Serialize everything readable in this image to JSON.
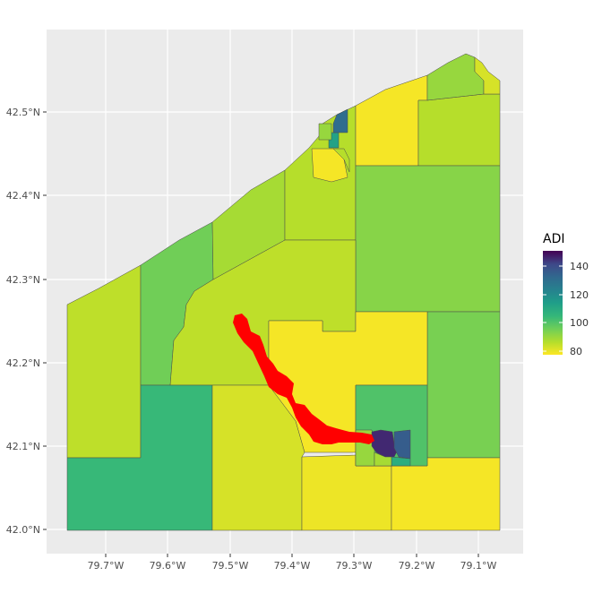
{
  "map": {
    "background_color": "#EBEBEB",
    "grid_color": "#FFFFFF",
    "highlight_color": "#FF0000",
    "x_ticks": [
      "79.7°W",
      "79.6°W",
      "79.5°W",
      "79.4°W",
      "79.3°W",
      "79.2°W",
      "79.1°W"
    ],
    "y_ticks": [
      "42.5°N",
      "42.4°N",
      "42.3°N",
      "42.2°N",
      "42.1°N",
      "42.0°N"
    ]
  },
  "legend": {
    "title": "ADI",
    "labels": [
      "140",
      "120",
      "100",
      "80"
    ],
    "min": 77,
    "max": 150
  },
  "regions": [
    {
      "id": "northwest-lakeshore",
      "adi": 85
    },
    {
      "id": "west-central",
      "adi": 95
    },
    {
      "id": "north-central-west",
      "adi": 88
    },
    {
      "id": "north-central-east",
      "adi": 86
    },
    {
      "id": "northeast-yellow",
      "adi": 78
    },
    {
      "id": "northeast-green",
      "adi": 86
    },
    {
      "id": "far-northeast-green",
      "adi": 90
    },
    {
      "id": "far-northeast-yellow",
      "adi": 82
    },
    {
      "id": "east-central-large",
      "adi": 92
    },
    {
      "id": "central-large",
      "adi": 85
    },
    {
      "id": "east-middle",
      "adi": 94
    },
    {
      "id": "south-central-yellow",
      "adi": 78
    },
    {
      "id": "southwest-teal",
      "adi": 104
    },
    {
      "id": "south-central-olive",
      "adi": 82
    },
    {
      "id": "south-southwest-yellow",
      "adi": 79
    },
    {
      "id": "south-central-yellow-2",
      "adi": 78
    },
    {
      "id": "southeast-yellow",
      "adi": 78
    },
    {
      "id": "city-teal-block",
      "adi": 100
    },
    {
      "id": "city-green-west",
      "adi": 90
    },
    {
      "id": "city-purple-core",
      "adi": 145
    },
    {
      "id": "city-indigo",
      "adi": 135
    },
    {
      "id": "city-teal-small",
      "adi": 108
    },
    {
      "id": "city-green-small",
      "adi": 88
    },
    {
      "id": "town-teal",
      "adi": 112
    },
    {
      "id": "town-indigo",
      "adi": 130
    },
    {
      "id": "town-green",
      "adi": 90
    },
    {
      "id": "town-yellow",
      "adi": 78
    },
    {
      "id": "town-light-green",
      "adi": 86
    }
  ]
}
